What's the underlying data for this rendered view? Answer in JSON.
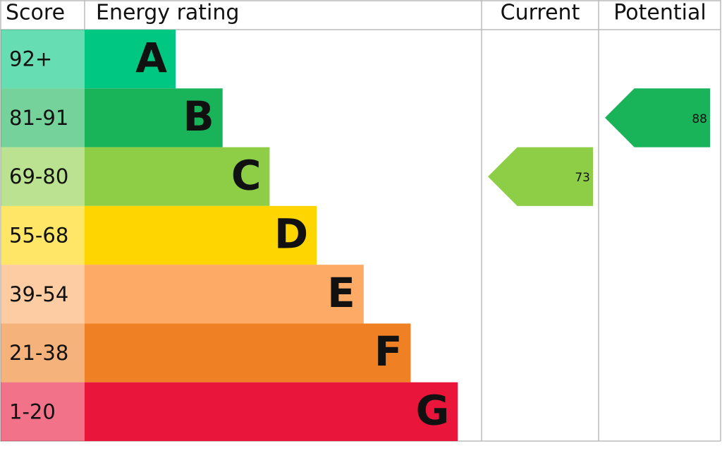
{
  "chart_data": {
    "type": "epc",
    "headers": {
      "score": "Score",
      "rating": "Energy rating",
      "current": "Current",
      "potential": "Potential"
    },
    "bands": [
      {
        "score": "92+",
        "letter": "A",
        "color": "#00c781"
      },
      {
        "score": "81-91",
        "letter": "B",
        "color": "#19b459"
      },
      {
        "score": "69-80",
        "letter": "C",
        "color": "#8dce46"
      },
      {
        "score": "55-68",
        "letter": "D",
        "color": "#ffd500"
      },
      {
        "score": "39-54",
        "letter": "E",
        "color": "#fcaa65"
      },
      {
        "score": "21-38",
        "letter": "F",
        "color": "#ef8023"
      },
      {
        "score": "1-20",
        "letter": "G",
        "color": "#e9153b"
      }
    ],
    "current": 73,
    "potential": 88
  }
}
